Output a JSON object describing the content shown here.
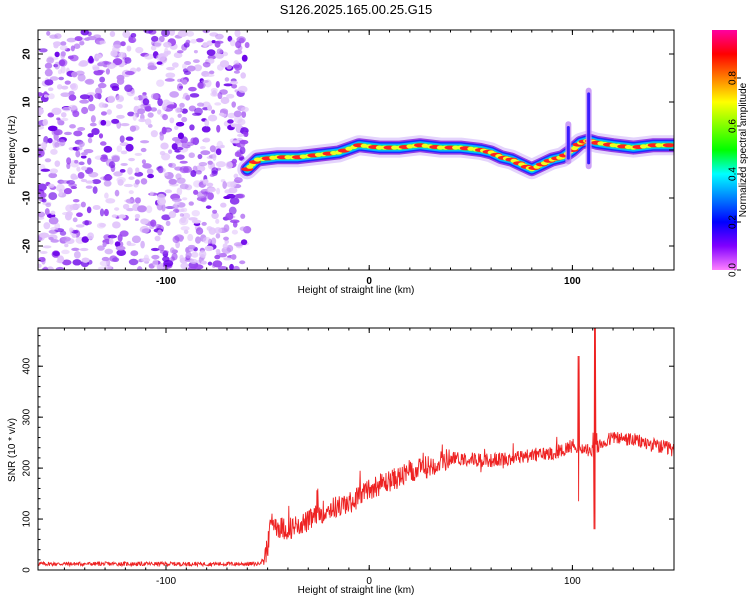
{
  "figure": {
    "title": "S126.2025.165.00.25.G15"
  },
  "chart_data": [
    {
      "type": "heatmap",
      "panel": "spectrogram",
      "xlabel": "Height of straight line (km)",
      "ylabel": "Frequency (Hz)",
      "xlim": [
        -163,
        150
      ],
      "ylim": [
        -25,
        25
      ],
      "x_ticks": [
        "-100",
        "0",
        "100"
      ],
      "y_ticks": [
        "20",
        "10",
        "0",
        "-10",
        "-20"
      ],
      "noise_region_x": [
        -163,
        -60
      ],
      "ridge": {
        "x": [
          -60,
          -55,
          -45,
          -35,
          -25,
          -15,
          -5,
          5,
          15,
          25,
          35,
          45,
          55,
          60,
          65,
          70,
          75,
          80,
          85,
          90,
          95,
          100,
          104,
          108,
          112,
          120,
          130,
          140,
          150
        ],
        "y": [
          -4,
          -2,
          -1.5,
          -1.5,
          -1,
          -0.5,
          1,
          0.5,
          0.5,
          1,
          0.5,
          0.5,
          0,
          -0.5,
          -1.5,
          -2,
          -3,
          -4,
          -3,
          -2,
          -1.5,
          0,
          1.5,
          2,
          1.5,
          1,
          0.5,
          1,
          1
        ]
      },
      "spike_x": [
        98,
        108
      ],
      "colorbar": {
        "label": "Normalized spectral amplitude",
        "ticks": [
          "0.0",
          "0.2",
          "0.4",
          "0.6",
          "0.8"
        ],
        "colors": [
          "#ff00a0",
          "#ff0000",
          "#ff8000",
          "#ffff00",
          "#80ff00",
          "#00ff00",
          "#00ffff",
          "#0080ff",
          "#0000ff",
          "#8000ff",
          "#ff80ff"
        ]
      }
    },
    {
      "type": "line",
      "panel": "snr",
      "xlabel": "Height of straight line (km)",
      "ylabel": "SNR (10 * v/v)",
      "xlim": [
        -163,
        150
      ],
      "ylim": [
        0,
        475
      ],
      "x_ticks": [
        "-100",
        "0",
        "100"
      ],
      "y_ticks": [
        "0",
        "100",
        "200",
        "300",
        "400"
      ],
      "color": "#ee2222",
      "series": [
        {
          "x": [
            -163,
            -55,
            -52,
            -50,
            -48,
            -45,
            -40,
            -35,
            -30,
            -25,
            -20,
            -15,
            -10,
            -5,
            0,
            10,
            20,
            30,
            40,
            50,
            60,
            70,
            80,
            90,
            95,
            100,
            105,
            110,
            115,
            120,
            130,
            140,
            150
          ],
          "values": [
            12,
            12,
            20,
            45,
            100,
            85,
            80,
            90,
            95,
            110,
            120,
            125,
            130,
            145,
            160,
            175,
            190,
            205,
            220,
            218,
            215,
            220,
            225,
            230,
            235,
            245,
            240,
            230,
            250,
            260,
            255,
            245,
            235
          ]
        }
      ],
      "spikes": [
        {
          "x": 103,
          "low": 135,
          "high": 420
        },
        {
          "x": 111,
          "low": 80,
          "high": 475
        }
      ]
    }
  ]
}
